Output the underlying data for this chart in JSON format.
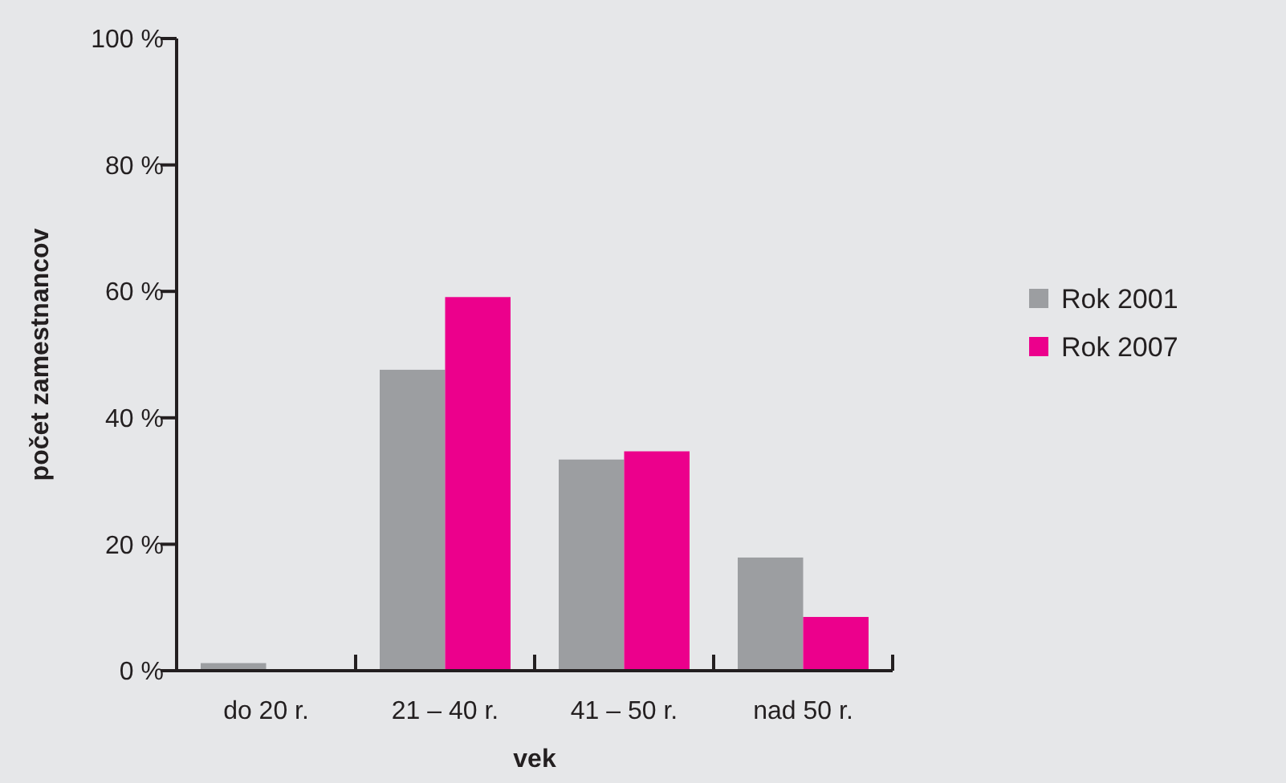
{
  "chart_data": {
    "type": "bar",
    "xlabel": "vek",
    "ylabel": "počet zamestnancov",
    "categories": [
      "do 20 r.",
      "21 – 40 r.",
      "41 – 50 r.",
      "nad 50 r."
    ],
    "series": [
      {
        "name": "Rok 2001",
        "color": "#9c9ea1",
        "values": [
          1.2,
          47.6,
          33.4,
          17.9
        ]
      },
      {
        "name": "Rok 2007",
        "color": "#ec008c",
        "values": [
          0,
          59.1,
          34.7,
          8.5
        ]
      }
    ],
    "ylim": [
      0,
      100
    ],
    "yticks": [
      {
        "value": 0,
        "label": "0 %"
      },
      {
        "value": 20,
        "label": "20 %"
      },
      {
        "value": 40,
        "label": "40 %"
      },
      {
        "value": 60,
        "label": "60 %"
      },
      {
        "value": 80,
        "label": "80 %"
      },
      {
        "value": 100,
        "label": "100 %"
      }
    ],
    "grid": false,
    "legend": "right"
  }
}
